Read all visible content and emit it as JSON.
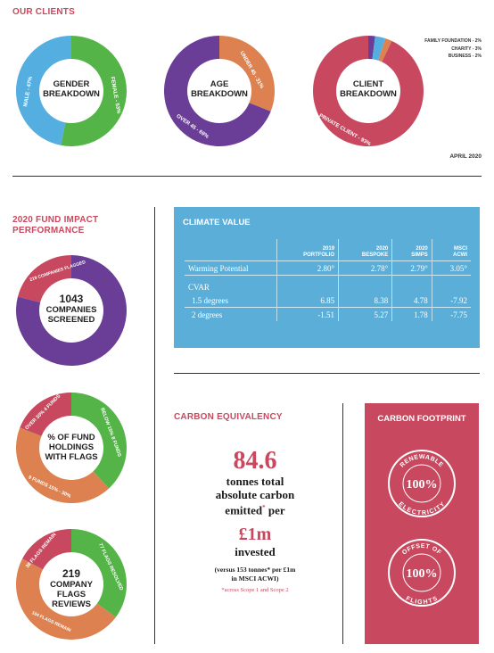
{
  "clients": {
    "title": "OUR CLIENTS",
    "gender": {
      "label_l1": "GENDER",
      "label_l2": "BREAKDOWN",
      "male": "MALE - 47%",
      "female": "FEMALE - 53%",
      "male_pct": 47,
      "female_pct": 53,
      "color_male": "#55aee0",
      "color_female": "#55b448"
    },
    "age": {
      "label_l1": "AGE",
      "label_l2": "BREAKDOWN",
      "under": "UNDER 45 - 31%",
      "over": "OVER 45 - 69%",
      "under_pct": 31,
      "over_pct": 69,
      "color_under": "#dd8150",
      "color_over": "#6a3d96"
    },
    "client": {
      "label_l1": "CLIENT",
      "label_l2": "BREAKDOWN",
      "private": "PRIVATE CLIENT - 93%",
      "family": "FAMILY FOUNDATION - 2%",
      "charity": "CHARITY - 3%",
      "business": "BUSINESS - 2%",
      "private_pct": 93,
      "family_pct": 2,
      "charity_pct": 3,
      "business_pct": 2,
      "color_private": "#c8495f",
      "color_family": "#6a3d96",
      "color_charity": "#55aee0",
      "color_business": "#dd8150"
    },
    "date": "APRIL 2020"
  },
  "impact": {
    "title_l1": "2020 FUND IMPACT",
    "title_l2": "PERFORMANCE",
    "screened": {
      "line1": "1043",
      "line2": "COMPANIES",
      "line3": "SCREENED",
      "flagged_pct": 21,
      "flagged_label": "219 COMPANIES FLAGGED"
    },
    "holdings": {
      "line1": "% OF FUND",
      "line2": "HOLDINGS",
      "line3": "WITH FLAGS",
      "seg_below15": "BELOW 15% 8 FUNDS",
      "seg_15_30": "9 FUNDS 15% - 30%",
      "seg_over30": "OVER 30% 4 FUNDS",
      "below15_funds": 8,
      "mid_funds": 9,
      "over30_funds": 4
    },
    "reviews": {
      "line1": "219",
      "line2": "COMPANY FLAGS",
      "line3": "REVIEWS",
      "seg_resolved": "77 FLAGS RESOLVED",
      "seg_engage": "104 FLAGS REMAIN",
      "seg_remain": "38 FLAGS REMAIN",
      "resolved": 77,
      "engage": 104,
      "remain": 38
    },
    "colors": {
      "purple": "#6a3d96",
      "pink": "#c8495f",
      "green": "#55b448",
      "orange": "#dd8150"
    }
  },
  "climate": {
    "title": "CLIMATE VALUE",
    "cols": [
      {
        "l1": "2019",
        "l2": "PORTFOLIO"
      },
      {
        "l1": "2020",
        "l2": "BESPOKE"
      },
      {
        "l1": "2020",
        "l2": "SIMPS"
      },
      {
        "l1": "MSCI",
        "l2": "ACWI"
      }
    ],
    "rows": {
      "warming": {
        "label": "Warming Potential",
        "v": [
          "2.80°",
          "2.78°",
          "2.79°",
          "3.05°"
        ]
      },
      "cvar": {
        "label": "CVAR"
      },
      "d15": {
        "label": "1.5 degrees",
        "v": [
          "6.85",
          "8.38",
          "4.78",
          "-7.92"
        ]
      },
      "d2": {
        "label": "2 degrees",
        "v": [
          "-1.51",
          "5.27",
          "1.78",
          "-7.75"
        ]
      }
    }
  },
  "equivalency": {
    "title": "CARBON EQUIVALENCY",
    "value": "84.6",
    "text1": "tonnes total",
    "text2": "absolute carbon",
    "text3": "emitted",
    "text3b": "per",
    "asterisk": "*",
    "per_value": "£1m",
    "invested": "invested",
    "versus_l1": "(versus 153 tonnes* per £1m",
    "versus_l2": "in MSCI ACWI)",
    "note": "*across Scope 1 and Scope 2"
  },
  "footprint": {
    "title": "CARBON FOOTPRINT",
    "stamp1": {
      "top": "RENEWABLE",
      "value": "100%",
      "bottom": "ELECTRICITY"
    },
    "stamp2": {
      "top": "OFFSET OF",
      "value": "100%",
      "bottom": "FLIGHTS"
    }
  }
}
